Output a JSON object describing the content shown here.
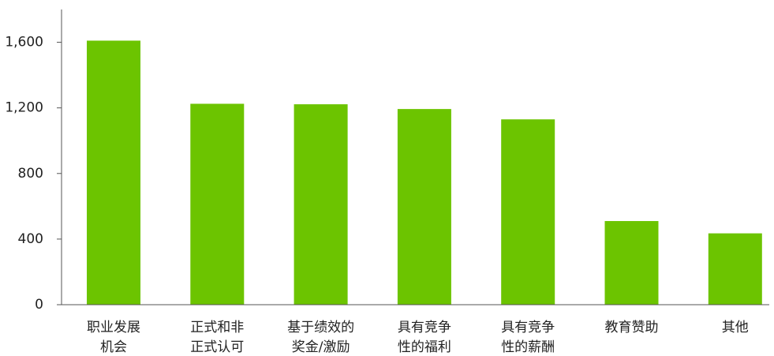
{
  "chart_data": {
    "type": "bar",
    "categories": [
      [
        "职业发展",
        "机会"
      ],
      [
        "正式和非",
        "正式认可"
      ],
      [
        "基于绩效的",
        "奖金/激励"
      ],
      [
        "具有竞争",
        "性的福利"
      ],
      [
        "具有竞争",
        "性的薪酬"
      ],
      [
        "教育赞助"
      ],
      [
        "其他"
      ]
    ],
    "values": [
      1610,
      1225,
      1222,
      1193,
      1130,
      510,
      435
    ],
    "ylim": [
      0,
      1800
    ],
    "yticks": [
      0,
      400,
      800,
      1200,
      1600
    ],
    "ytick_labels": [
      "0",
      "400",
      "800",
      "1,200",
      "1,600"
    ],
    "bar_color": "#6cc400",
    "axis_color": "#555555",
    "grid": false,
    "legend": "none"
  }
}
